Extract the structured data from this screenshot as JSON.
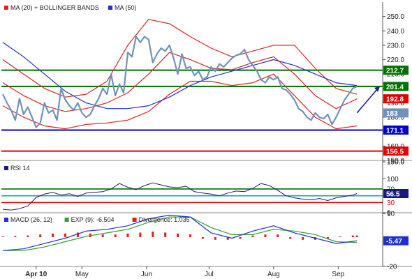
{
  "colors": {
    "ma20": "#e02020",
    "ma50": "#2030d0",
    "price": "#6f93b8",
    "support": "#0000cc",
    "resistance": "#007000",
    "target_low": "#e00000",
    "arrow": "#20208a",
    "rsi_line": "#1a1a7a",
    "rsi_ref": "#20a0a0",
    "macd": "#2030d0",
    "exp": "#30a030",
    "divergence": "#e02020"
  },
  "price_legend": [
    {
      "label": "MA (20) + BOLLINGER BANDS",
      "color": "#e02020"
    },
    {
      "label": "MA (50)",
      "color": "#2030d0"
    }
  ],
  "rsi_legend": [
    {
      "label": "RSI 14",
      "color": "#1a1a7a"
    }
  ],
  "macd_legend": [
    {
      "label": "MACD (26, 12)",
      "color": "#2030d0"
    },
    {
      "label": "EXP (9): -6.504",
      "color": "#30a030"
    },
    {
      "label": "Divergence: 1.035",
      "color": "#e02020"
    }
  ],
  "x_axis_labels": [
    {
      "label": "Apr 10",
      "day": 16
    },
    {
      "label": "May",
      "day": 38
    },
    {
      "label": "Jun",
      "day": 69
    },
    {
      "label": "Jul",
      "day": 99
    },
    {
      "label": "Aug",
      "day": 130
    },
    {
      "label": "Sep",
      "day": 161
    }
  ],
  "chart_data": [
    {
      "type": "line",
      "name": "price",
      "ylim": [
        150,
        260
      ],
      "yticks": [
        "250.0",
        "240.0",
        "230.0",
        "220.0",
        "210.0",
        "200.0",
        "190.0",
        "180.0",
        "170.0",
        "160.0",
        "150.0"
      ],
      "x_day_range": [
        0,
        181
      ],
      "price_days": [
        0,
        2,
        4,
        6,
        8,
        10,
        12,
        14,
        16,
        18,
        20,
        22,
        24,
        26,
        28,
        30,
        32,
        34,
        36,
        38,
        40,
        42,
        44,
        46,
        48,
        50,
        52,
        54,
        56,
        58,
        60,
        62,
        64,
        66,
        68,
        70,
        72,
        74,
        76,
        78,
        80,
        82,
        84,
        86,
        88,
        90,
        92,
        94,
        96,
        98,
        100,
        102,
        104,
        106,
        108,
        110,
        112,
        114,
        116,
        118,
        120,
        122,
        124,
        126,
        128,
        130,
        132,
        134,
        136,
        138,
        140,
        142,
        144,
        146,
        148,
        150,
        152,
        154,
        156,
        158,
        160,
        162,
        164,
        166,
        168,
        170
      ],
      "price_values": [
        196,
        190,
        185,
        178,
        193,
        182,
        187,
        180,
        173,
        176,
        190,
        183,
        185,
        178,
        200,
        192,
        188,
        185,
        190,
        183,
        180,
        182,
        188,
        193,
        200,
        196,
        210,
        195,
        203,
        197,
        225,
        222,
        236,
        232,
        236,
        234,
        218,
        224,
        228,
        226,
        230,
        221,
        210,
        224,
        214,
        215,
        209,
        212,
        206,
        208,
        215,
        212,
        217,
        215,
        218,
        221,
        223,
        224,
        227,
        220,
        216,
        212,
        206,
        204,
        208,
        206,
        208,
        200,
        199,
        196,
        192,
        186,
        184,
        180,
        178,
        183,
        180,
        179,
        182,
        175,
        180,
        186,
        192,
        196,
        200,
        201.4
      ],
      "ma20_days": [
        0,
        10,
        20,
        30,
        40,
        50,
        60,
        70,
        80,
        90,
        100,
        110,
        120,
        130,
        140,
        150,
        160,
        170
      ],
      "ma20_values": [
        204,
        195,
        188,
        184,
        186,
        190,
        197,
        210,
        225,
        220,
        214,
        213,
        218,
        222,
        210,
        195,
        186,
        192.8
      ],
      "upper_days": [
        0,
        10,
        20,
        30,
        40,
        50,
        60,
        70,
        80,
        90,
        100,
        110,
        120,
        130,
        140,
        150,
        160,
        170
      ],
      "upper_values": [
        220,
        210,
        200,
        194,
        196,
        205,
        230,
        248,
        245,
        236,
        228,
        222,
        226,
        230,
        230,
        214,
        200,
        196
      ],
      "lower_days": [
        0,
        10,
        20,
        30,
        40,
        50,
        60,
        70,
        80,
        90,
        100,
        110,
        120,
        130,
        140,
        150,
        160,
        170
      ],
      "lower_values": [
        188,
        180,
        174,
        172,
        175,
        176,
        178,
        184,
        196,
        205,
        205,
        202,
        204,
        210,
        195,
        180,
        172,
        174
      ],
      "ma50_days": [
        0,
        10,
        20,
        30,
        40,
        50,
        60,
        70,
        80,
        90,
        100,
        110,
        120,
        130,
        140,
        150,
        160,
        170
      ],
      "ma50_values": [
        232,
        222,
        210,
        198,
        190,
        186,
        186,
        188,
        194,
        202,
        208,
        212,
        216,
        220,
        216,
        210,
        204,
        202
      ],
      "levels": [
        {
          "value": 212.7,
          "label": "212.7",
          "color": "#007000"
        },
        {
          "value": 201.4,
          "label": "201.4",
          "color": "#007000"
        },
        {
          "value": 192.8,
          "label": "192.8",
          "color": "#e00000"
        },
        {
          "value": 183,
          "label": "183",
          "color": "#6f93b8"
        },
        {
          "value": 171.1,
          "label": "171.1",
          "color": "#0000cc"
        },
        {
          "value": 156.5,
          "label": "156.5",
          "color": "#e00000"
        }
      ],
      "arrow": {
        "from_day": 170,
        "from_value": 183,
        "to_day": 181,
        "to_value": 201.4
      }
    },
    {
      "type": "line",
      "name": "RSI 14",
      "ylim": [
        0,
        150
      ],
      "yticks": [
        "150.0",
        "100",
        "50",
        "0"
      ],
      "ref_lines": [
        {
          "value": 70,
          "label": "70",
          "color": "#007000"
        },
        {
          "value": 30,
          "label": "30",
          "color": "#e00000"
        },
        {
          "value": 50,
          "color": "#20a0a0"
        }
      ],
      "last_label": "56.5",
      "days": [
        0,
        4,
        8,
        12,
        16,
        20,
        24,
        28,
        32,
        36,
        40,
        44,
        48,
        52,
        56,
        60,
        64,
        68,
        72,
        76,
        80,
        84,
        88,
        92,
        96,
        100,
        104,
        108,
        112,
        116,
        120,
        124,
        128,
        132,
        136,
        140,
        144,
        148,
        152,
        156,
        160,
        164,
        168,
        170
      ],
      "values": [
        10,
        8,
        12,
        20,
        45,
        55,
        60,
        52,
        56,
        48,
        58,
        60,
        62,
        70,
        86,
        75,
        68,
        80,
        88,
        82,
        76,
        74,
        78,
        62,
        58,
        55,
        50,
        58,
        64,
        62,
        72,
        86,
        80,
        66,
        50,
        44,
        40,
        38,
        42,
        36,
        44,
        48,
        52,
        56.5
      ]
    },
    {
      "type": "bar",
      "name": "MACD (26, 12)",
      "ylim": [
        -20,
        10
      ],
      "yticks": [
        "10",
        "-20"
      ],
      "last_label": "-5.47",
      "macd_days": [
        0,
        10,
        20,
        30,
        40,
        50,
        60,
        70,
        80,
        90,
        100,
        110,
        120,
        130,
        140,
        150,
        160,
        170
      ],
      "macd_values": [
        -11,
        -10,
        -7,
        -4,
        0,
        1,
        3,
        7,
        9,
        8,
        -1,
        -4,
        0,
        3,
        -1,
        -4,
        -7,
        -5.47
      ],
      "exp_days": [
        0,
        10,
        20,
        30,
        40,
        50,
        60,
        70,
        80,
        90,
        100,
        110,
        120,
        130,
        140,
        150,
        160,
        170
      ],
      "exp_values": [
        -11,
        -11,
        -9,
        -6,
        -3,
        -1,
        1,
        5,
        8,
        8,
        2,
        -2,
        -2,
        1,
        0,
        -2,
        -6,
        -6.504
      ],
      "div_days": [
        0,
        6,
        12,
        18,
        24,
        30,
        36,
        42,
        48,
        54,
        60,
        66,
        72,
        78,
        84,
        90,
        96,
        102,
        108,
        114,
        120,
        126,
        132,
        138,
        144,
        150,
        156,
        162,
        168,
        170
      ],
      "div_values": [
        0,
        0.5,
        1,
        2,
        3,
        3,
        4,
        3,
        2,
        2,
        3,
        4,
        5,
        4,
        3,
        2,
        -1,
        -2,
        -2,
        -1,
        1,
        2,
        2,
        -1,
        -2,
        -2,
        -1,
        0,
        1,
        1.035
      ]
    }
  ]
}
